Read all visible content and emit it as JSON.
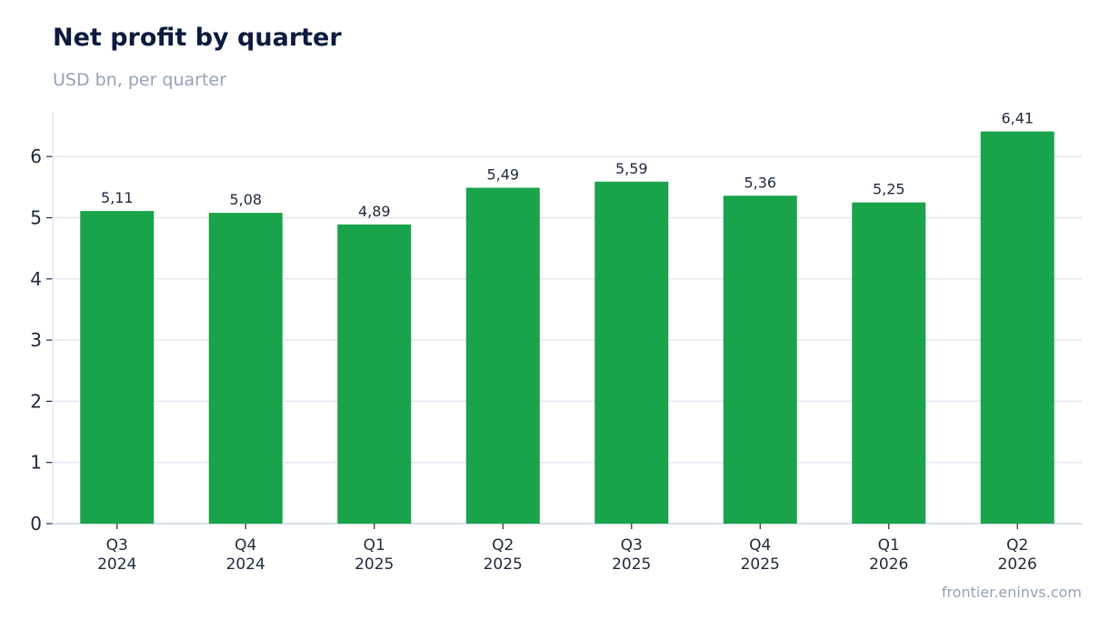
{
  "chart_data": {
    "type": "bar",
    "title": "Net profit by quarter",
    "subtitle": "USD bn, per quarter",
    "source": "frontier.eninvs.com",
    "categories": [
      [
        "Q3",
        "2024"
      ],
      [
        "Q4",
        "2024"
      ],
      [
        "Q1",
        "2025"
      ],
      [
        "Q2",
        "2025"
      ],
      [
        "Q3",
        "2025"
      ],
      [
        "Q4",
        "2025"
      ],
      [
        "Q1",
        "2026"
      ],
      [
        "Q2",
        "2026"
      ]
    ],
    "values": [
      5.11,
      5.08,
      4.89,
      5.49,
      5.59,
      5.36,
      5.25,
      6.41
    ],
    "value_labels": [
      "5,11",
      "5,08",
      "4,89",
      "5,49",
      "5,59",
      "5,36",
      "5,25",
      "6,41"
    ],
    "yticks": [
      "0",
      "1",
      "2",
      "3",
      "4",
      "5",
      "6"
    ],
    "ylim": [
      0,
      6.72
    ],
    "grid": true,
    "bar_color": "#19a34a",
    "grid_color": "#e2e8f0"
  }
}
